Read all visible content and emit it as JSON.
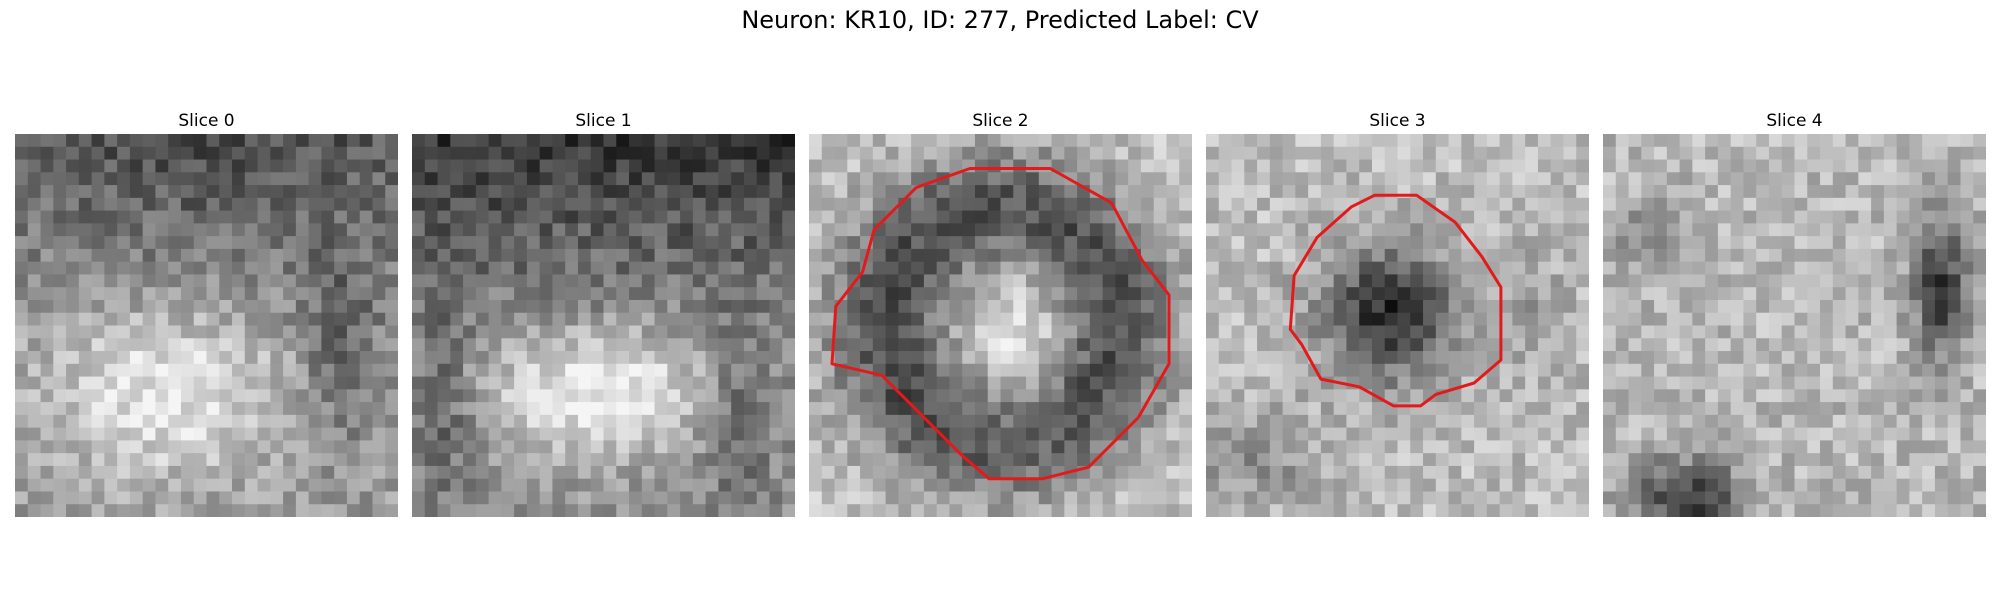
{
  "figure": {
    "title": "Neuron: KR10, ID: 277, Predicted Label: CV"
  },
  "panels": [
    {
      "title": "Slice 0",
      "has_contour": false
    },
    {
      "title": "Slice 1",
      "has_contour": false
    },
    {
      "title": "Slice 2",
      "has_contour": true
    },
    {
      "title": "Slice 3",
      "has_contour": true
    },
    {
      "title": "Slice 4",
      "has_contour": false
    }
  ],
  "colors": {
    "contour": "#e31a1c",
    "colormap": "grayscale"
  }
}
